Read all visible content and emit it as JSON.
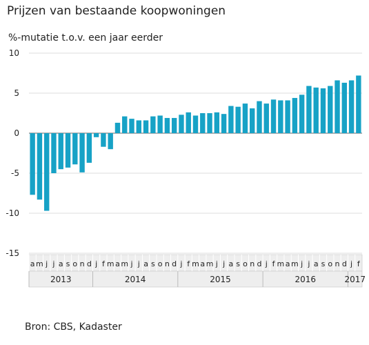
{
  "title": "Prijzen van bestaande koopwoningen",
  "subtitle": "%-mutatie t.o.v. een jaar eerder",
  "source": "Bron: CBS, Kadaster",
  "colors": {
    "bar": "#17a2c6",
    "grid": "#dddddd",
    "zero": "#999999",
    "axisBand": "#eeeeee",
    "axisBorder": "#bbbbbb"
  },
  "chart_data": {
    "type": "bar",
    "title": "Prijzen van bestaande koopwoningen",
    "ylabel": "%-mutatie t.o.v. een jaar eerder",
    "ylim": [
      -15,
      10
    ],
    "yticks": [
      10,
      5,
      0,
      -5,
      -10,
      -15
    ],
    "grid": true,
    "categories": [
      "2013-04",
      "2013-05",
      "2013-06",
      "2013-07",
      "2013-08",
      "2013-09",
      "2013-10",
      "2013-11",
      "2013-12",
      "2014-01",
      "2014-02",
      "2014-03",
      "2014-04",
      "2014-05",
      "2014-06",
      "2014-07",
      "2014-08",
      "2014-09",
      "2014-10",
      "2014-11",
      "2014-12",
      "2015-01",
      "2015-02",
      "2015-03",
      "2015-04",
      "2015-05",
      "2015-06",
      "2015-07",
      "2015-08",
      "2015-09",
      "2015-10",
      "2015-11",
      "2015-12",
      "2016-01",
      "2016-02",
      "2016-03",
      "2016-04",
      "2016-05",
      "2016-06",
      "2016-07",
      "2016-08",
      "2016-09",
      "2016-10",
      "2016-11",
      "2016-12",
      "2017-01",
      "2017-02"
    ],
    "values": [
      -7.7,
      -8.3,
      -9.7,
      -5.0,
      -4.5,
      -4.3,
      -3.9,
      -4.9,
      -3.7,
      -0.5,
      -1.7,
      -2.0,
      1.3,
      2.1,
      1.8,
      1.6,
      1.6,
      2.1,
      2.2,
      1.9,
      1.9,
      2.3,
      2.6,
      2.2,
      2.5,
      2.5,
      2.6,
      2.4,
      3.4,
      3.3,
      3.7,
      3.1,
      4.0,
      3.7,
      4.2,
      4.1,
      4.1,
      4.4,
      4.8,
      5.9,
      5.7,
      5.6,
      5.9,
      6.6,
      6.3,
      6.6,
      7.2
    ],
    "month_labels": [
      "a",
      "m",
      "j",
      "j",
      "a",
      "s",
      "o",
      "n",
      "d",
      "j",
      "f",
      "m",
      "a",
      "m",
      "j",
      "j",
      "a",
      "s",
      "o",
      "n",
      "d",
      "j",
      "f",
      "m",
      "a",
      "m",
      "j",
      "j",
      "a",
      "s",
      "o",
      "n",
      "d",
      "j",
      "f",
      "m",
      "a",
      "m",
      "j",
      "j",
      "a",
      "s",
      "o",
      "n",
      "d",
      "j",
      "f"
    ],
    "years": [
      {
        "label": "2013",
        "start": 0,
        "count": 9
      },
      {
        "label": "2014",
        "start": 9,
        "count": 12
      },
      {
        "label": "2015",
        "start": 21,
        "count": 12
      },
      {
        "label": "2016",
        "start": 33,
        "count": 12
      },
      {
        "label": "2017",
        "start": 45,
        "count": 2
      }
    ]
  }
}
